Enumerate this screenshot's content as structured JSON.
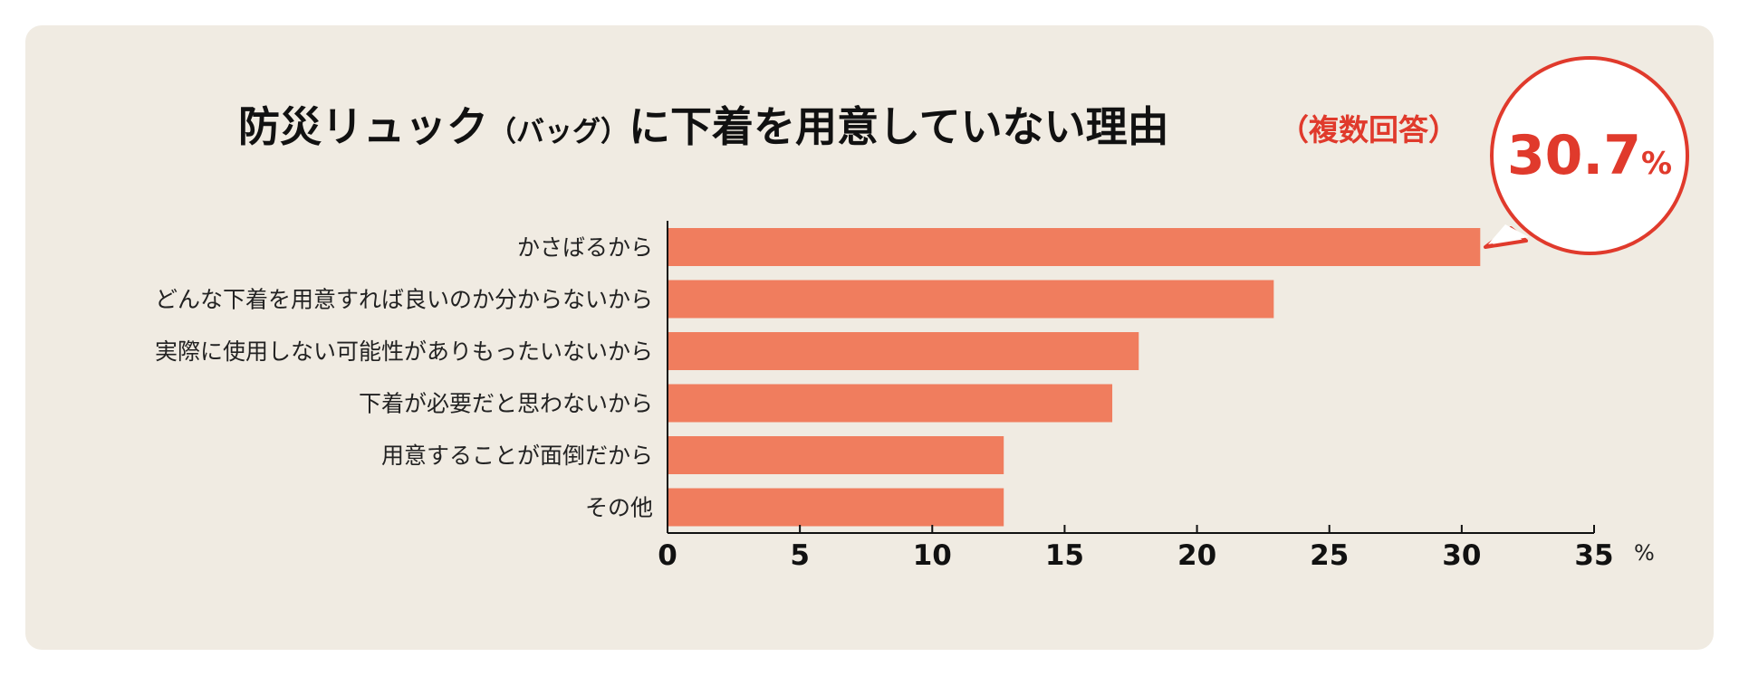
{
  "colors": {
    "bar": "#f07d5e",
    "accent": "#e03a2c",
    "panel_bg": "#f0ebe2"
  },
  "chart_data": {
    "type": "bar",
    "orientation": "horizontal",
    "title": "防災リュック（バッグ）に下着を用意していない理由",
    "title_parts": {
      "main_1": "防災リュック",
      "paren": "（バッグ）",
      "main_2": "に下着を用意していない理由",
      "subtitle": "（複数回答）"
    },
    "categories": [
      "かさばるから",
      "どんな下着を用意すれば良いのか分からないから",
      "実際に使用しない可能性がありもったいないから",
      "下着が必要だと思わないから",
      "用意することが面倒だから",
      "その他"
    ],
    "values": [
      30.7,
      22.9,
      17.8,
      16.8,
      12.7,
      12.7
    ],
    "xlim": [
      0,
      35
    ],
    "xticks": [
      "0",
      "5",
      "10",
      "15",
      "20",
      "25",
      "30",
      "35"
    ],
    "x_unit": "%",
    "grid": false,
    "callout": {
      "value": "30.7",
      "unit": "%"
    }
  }
}
